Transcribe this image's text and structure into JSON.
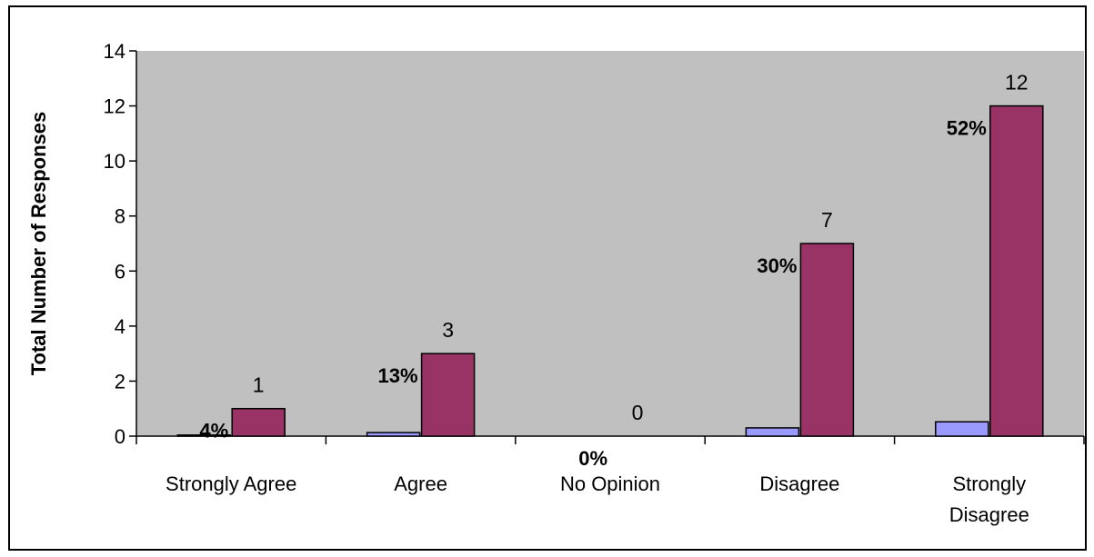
{
  "chart_data": {
    "type": "bar",
    "categories": [
      "Strongly Agree",
      "Agree",
      "No Opinion",
      "Disagree",
      "Strongly Disagree"
    ],
    "series": [
      {
        "values": [
          0.04,
          0.13,
          0.0,
          0.3,
          0.52
        ],
        "labels": [
          "4%",
          "13%",
          "0%",
          "30%",
          "52%"
        ]
      },
      {
        "values": [
          1,
          3,
          0,
          7,
          12
        ],
        "labels": [
          "1",
          "3",
          "0",
          "7",
          "12"
        ]
      }
    ],
    "ylabel": "Total Number of Responses",
    "yticks": [
      0,
      2,
      4,
      6,
      8,
      10,
      12,
      14
    ],
    "ylim": [
      0,
      14
    ],
    "grid": false,
    "legend": "none",
    "colors": {
      "plot_background": "#c0c0c0",
      "series_1": "#9999ff",
      "series_2": "#993366",
      "outline": "#000000"
    }
  }
}
